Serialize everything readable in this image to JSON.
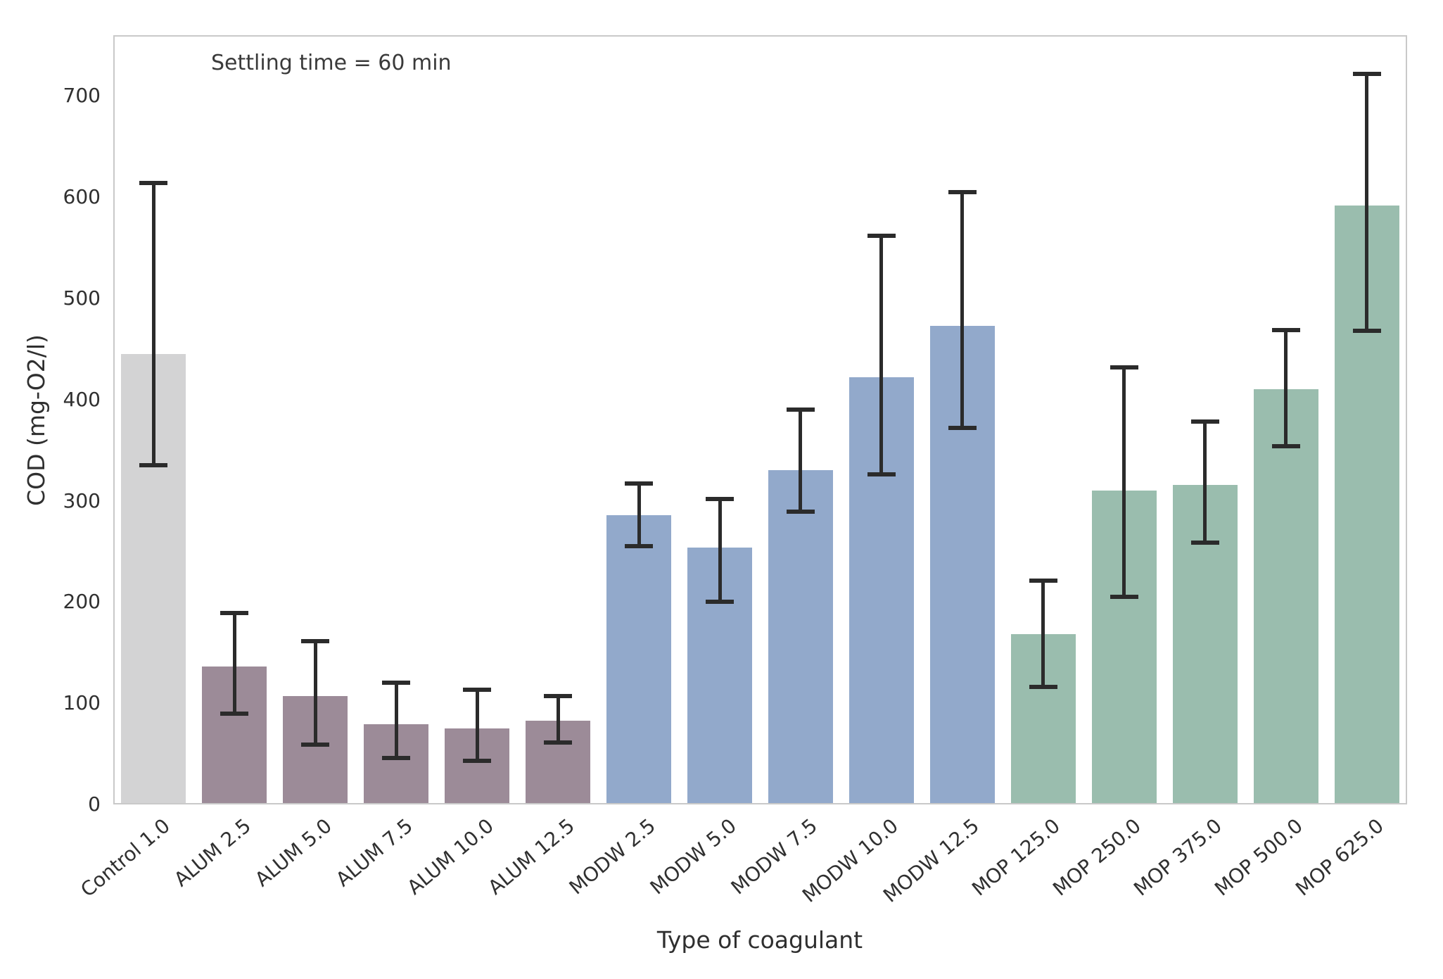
{
  "figure": {
    "annotation": "Settling time = 60 min",
    "xlabel": "Type of coagulant",
    "ylabel": "COD (mg-O2/l)"
  },
  "chart_data": {
    "type": "bar",
    "title": "",
    "annotation": "Settling time = 60 min",
    "xlabel": "Type of coagulant",
    "ylabel": "COD (mg-O2/l)",
    "ylim": [
      0,
      760
    ],
    "yticks": [
      0,
      100,
      200,
      300,
      400,
      500,
      600,
      700
    ],
    "grid": false,
    "legend_position": "none",
    "categories": [
      "Control 1.0",
      "ALUM 2.5",
      "ALUM 5.0",
      "ALUM 7.5",
      "ALUM 10.0",
      "ALUM 12.5",
      "MODW 2.5",
      "MODW 5.0",
      "MODW 7.5",
      "MODW 10.0",
      "MODW 12.5",
      "MOP 125.0",
      "MOP 250.0",
      "MOP 375.0",
      "MOP 500.0",
      "MOP 625.0"
    ],
    "bars": [
      {
        "label": "Control 1.0",
        "group": "control",
        "value": 445,
        "err_low": 335,
        "err_high": 614
      },
      {
        "label": "ALUM 2.5",
        "group": "alum",
        "value": 136,
        "err_low": 90,
        "err_high": 189
      },
      {
        "label": "ALUM 5.0",
        "group": "alum",
        "value": 107,
        "err_low": 59,
        "err_high": 161
      },
      {
        "label": "ALUM 7.5",
        "group": "alum",
        "value": 79,
        "err_low": 46,
        "err_high": 120
      },
      {
        "label": "ALUM 10.0",
        "group": "alum",
        "value": 75,
        "err_low": 43,
        "err_high": 113
      },
      {
        "label": "ALUM 12.5",
        "group": "alum",
        "value": 83,
        "err_low": 61,
        "err_high": 107
      },
      {
        "label": "MODW 2.5",
        "group": "modw",
        "value": 286,
        "err_low": 255,
        "err_high": 317
      },
      {
        "label": "MODW 5.0",
        "group": "modw",
        "value": 254,
        "err_low": 200,
        "err_high": 302
      },
      {
        "label": "MODW 7.5",
        "group": "modw",
        "value": 330,
        "err_low": 289,
        "err_high": 390
      },
      {
        "label": "MODW 10.0",
        "group": "modw",
        "value": 422,
        "err_low": 326,
        "err_high": 562
      },
      {
        "label": "MODW 12.5",
        "group": "modw",
        "value": 473,
        "err_low": 372,
        "err_high": 605
      },
      {
        "label": "MOP 125.0",
        "group": "mop",
        "value": 168,
        "err_low": 116,
        "err_high": 221
      },
      {
        "label": "MOP 250.0",
        "group": "mop",
        "value": 310,
        "err_low": 205,
        "err_high": 432
      },
      {
        "label": "MOP 375.0",
        "group": "mop",
        "value": 316,
        "err_low": 259,
        "err_high": 378
      },
      {
        "label": "MOP 500.0",
        "group": "mop",
        "value": 410,
        "err_low": 354,
        "err_high": 469
      },
      {
        "label": "MOP 625.0",
        "group": "mop",
        "value": 592,
        "err_low": 468,
        "err_high": 722
      }
    ],
    "group_colors": {
      "control": "#d3d3d4",
      "alum": "#9c8b98",
      "modw": "#92a9cb",
      "mop": "#9abdae"
    },
    "errorbar_color": "#2b2b2b",
    "spine_color": "#c9c9c9"
  }
}
